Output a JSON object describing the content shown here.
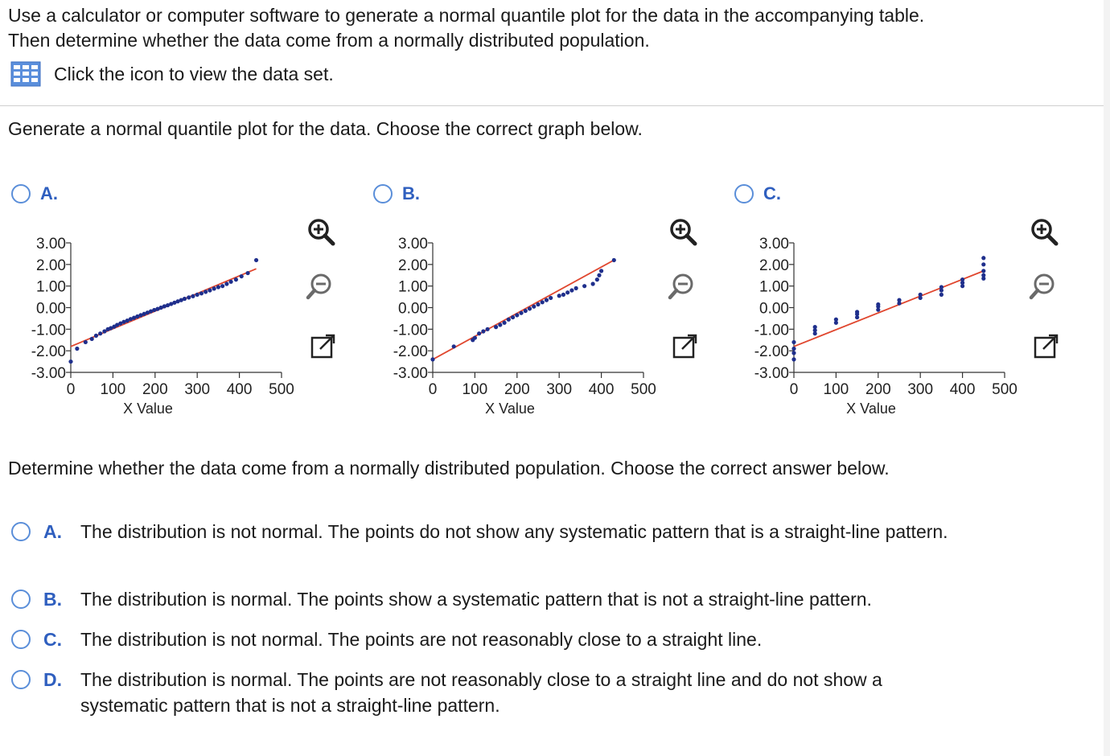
{
  "question": {
    "line1": "Use a calculator or computer software to generate a normal quantile plot for the data in the accompanying table.",
    "line2": "Then determine whether the data come from a normally distributed population.",
    "data_link": "Click the icon to view the data set.",
    "data_icon": "table-grid-icon"
  },
  "part1": {
    "prompt": "Generate a normal quantile plot for the data. Choose the correct graph below.",
    "options": [
      {
        "letter": "A."
      },
      {
        "letter": "B."
      },
      {
        "letter": "C."
      }
    ],
    "tool_icons": [
      "zoom-in-icon",
      "zoom-out-icon",
      "open-external-icon"
    ]
  },
  "part2": {
    "prompt": "Determine whether the data come from a normally distributed population. Choose the correct answer below.",
    "answers": [
      {
        "letter": "A.",
        "text": "The distribution is not normal. The points do not show any systematic pattern that is a straight-line pattern."
      },
      {
        "letter": "B.",
        "text": "The distribution is normal. The points show a systematic pattern that is not a straight-line pattern."
      },
      {
        "letter": "C.",
        "text": "The distribution is not normal. The points are not reasonably close to a straight line."
      },
      {
        "letter": "D.",
        "text": "The distribution is normal. The points are not reasonably close to a straight line and do not show a systematic pattern that is not a straight-line pattern."
      }
    ]
  },
  "colors": {
    "accent": "#2f5fbf",
    "points": "#1f2f8c",
    "fit_line": "#e0472f"
  },
  "chart_data": [
    {
      "type": "scatter",
      "xlabel": "X Value",
      "ylabel": "",
      "xlim": [
        0,
        500
      ],
      "ylim": [
        -3,
        3
      ],
      "x_ticks": [
        "0",
        "100",
        "200",
        "300",
        "400",
        "500"
      ],
      "y_ticks": [
        "3.00",
        "2.00",
        "1.00",
        "0.00",
        "-1.00",
        "-2.00",
        "-3.00"
      ],
      "fit_line": [
        [
          0,
          -1.8
        ],
        [
          440,
          1.8
        ]
      ],
      "points": [
        [
          0,
          -2.5
        ],
        [
          15,
          -1.9
        ],
        [
          35,
          -1.6
        ],
        [
          50,
          -1.45
        ],
        [
          60,
          -1.3
        ],
        [
          70,
          -1.2
        ],
        [
          80,
          -1.1
        ],
        [
          88,
          -1.0
        ],
        [
          95,
          -0.95
        ],
        [
          103,
          -0.88
        ],
        [
          110,
          -0.8
        ],
        [
          118,
          -0.73
        ],
        [
          126,
          -0.66
        ],
        [
          134,
          -0.6
        ],
        [
          142,
          -0.53
        ],
        [
          150,
          -0.47
        ],
        [
          158,
          -0.41
        ],
        [
          166,
          -0.35
        ],
        [
          174,
          -0.29
        ],
        [
          182,
          -0.23
        ],
        [
          190,
          -0.17
        ],
        [
          198,
          -0.11
        ],
        [
          206,
          -0.06
        ],
        [
          214,
          0.0
        ],
        [
          222,
          0.06
        ],
        [
          230,
          0.11
        ],
        [
          238,
          0.17
        ],
        [
          246,
          0.23
        ],
        [
          254,
          0.29
        ],
        [
          262,
          0.35
        ],
        [
          270,
          0.41
        ],
        [
          280,
          0.47
        ],
        [
          290,
          0.53
        ],
        [
          300,
          0.6
        ],
        [
          310,
          0.66
        ],
        [
          320,
          0.73
        ],
        [
          330,
          0.8
        ],
        [
          340,
          0.88
        ],
        [
          350,
          0.95
        ],
        [
          360,
          1.0
        ],
        [
          370,
          1.1
        ],
        [
          380,
          1.2
        ],
        [
          392,
          1.3
        ],
        [
          405,
          1.45
        ],
        [
          420,
          1.6
        ],
        [
          440,
          2.2
        ]
      ]
    },
    {
      "type": "scatter",
      "xlabel": "X Value",
      "ylabel": "",
      "xlim": [
        0,
        500
      ],
      "ylim": [
        -3,
        3
      ],
      "x_ticks": [
        "0",
        "100",
        "200",
        "300",
        "400",
        "500"
      ],
      "y_ticks": [
        "3.00",
        "2.00",
        "1.00",
        "0.00",
        "-1.00",
        "-2.00",
        "-3.00"
      ],
      "fit_line": [
        [
          0,
          -2.4
        ],
        [
          430,
          2.2
        ]
      ],
      "points": [
        [
          0,
          -2.4
        ],
        [
          50,
          -1.8
        ],
        [
          95,
          -1.5
        ],
        [
          100,
          -1.4
        ],
        [
          110,
          -1.2
        ],
        [
          120,
          -1.1
        ],
        [
          130,
          -1.0
        ],
        [
          150,
          -0.9
        ],
        [
          160,
          -0.8
        ],
        [
          170,
          -0.7
        ],
        [
          180,
          -0.55
        ],
        [
          190,
          -0.45
        ],
        [
          200,
          -0.35
        ],
        [
          210,
          -0.25
        ],
        [
          220,
          -0.15
        ],
        [
          230,
          -0.05
        ],
        [
          240,
          0.05
        ],
        [
          250,
          0.15
        ],
        [
          260,
          0.25
        ],
        [
          270,
          0.35
        ],
        [
          280,
          0.45
        ],
        [
          300,
          0.55
        ],
        [
          310,
          0.6
        ],
        [
          320,
          0.7
        ],
        [
          330,
          0.8
        ],
        [
          340,
          0.9
        ],
        [
          360,
          1.0
        ],
        [
          380,
          1.1
        ],
        [
          390,
          1.3
        ],
        [
          395,
          1.5
        ],
        [
          400,
          1.7
        ],
        [
          430,
          2.2
        ]
      ]
    },
    {
      "type": "scatter",
      "xlabel": "X Value",
      "ylabel": "",
      "xlim": [
        0,
        500
      ],
      "ylim": [
        -3,
        3
      ],
      "x_ticks": [
        "0",
        "100",
        "200",
        "300",
        "400",
        "500"
      ],
      "y_ticks": [
        "3.00",
        "2.00",
        "1.00",
        "0.00",
        "-1.00",
        "-2.00",
        "-3.00"
      ],
      "fit_line": [
        [
          0,
          -1.8
        ],
        [
          450,
          1.7
        ]
      ],
      "points": [
        [
          0,
          -2.4
        ],
        [
          0,
          -2.1
        ],
        [
          0,
          -1.9
        ],
        [
          0,
          -1.6
        ],
        [
          50,
          -1.2
        ],
        [
          50,
          -1.05
        ],
        [
          50,
          -0.9
        ],
        [
          100,
          -0.7
        ],
        [
          100,
          -0.55
        ],
        [
          150,
          -0.45
        ],
        [
          150,
          -0.3
        ],
        [
          150,
          -0.2
        ],
        [
          200,
          -0.1
        ],
        [
          200,
          0.05
        ],
        [
          200,
          0.15
        ],
        [
          250,
          0.2
        ],
        [
          250,
          0.35
        ],
        [
          300,
          0.45
        ],
        [
          300,
          0.6
        ],
        [
          350,
          0.6
        ],
        [
          350,
          0.8
        ],
        [
          350,
          0.95
        ],
        [
          400,
          1.0
        ],
        [
          400,
          1.15
        ],
        [
          400,
          1.3
        ],
        [
          450,
          1.35
        ],
        [
          450,
          1.5
        ],
        [
          450,
          1.7
        ],
        [
          450,
          2.0
        ],
        [
          450,
          2.3
        ]
      ]
    }
  ]
}
